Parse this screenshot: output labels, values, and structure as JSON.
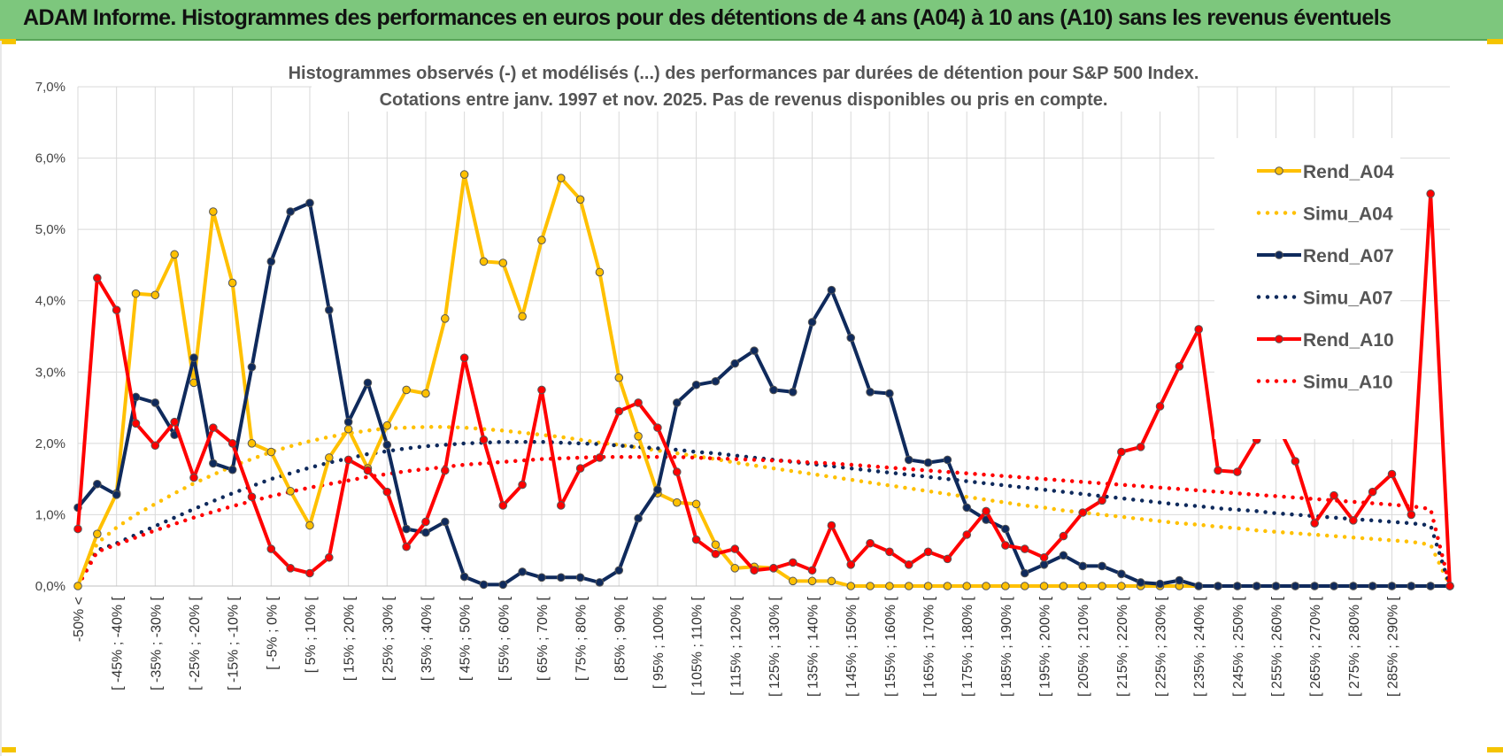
{
  "banner": {
    "title": "ADAM Informe. Histogrammes des performances en euros pour des détentions de 4 ans (A04) à 10 ans (A10) sans les revenus éventuels",
    "background": "#7dc77d",
    "accent": "#f5c400"
  },
  "chart_data": {
    "type": "line",
    "title": "Histogrammes observés (-) et modélisés (...) des performances par durées de détention pour S&P 500 Index.",
    "subtitle": "Cotations entre janv. 1997 et nov. 2025. Pas de revenus disponibles ou pris en compte.",
    "ylim": [
      0,
      7
    ],
    "yticks": [
      "0,0%",
      "1,0%",
      "2,0%",
      "3,0%",
      "4,0%",
      "5,0%",
      "6,0%",
      "7,0%"
    ],
    "grid": true,
    "legend_position": "right",
    "category_labels": [
      "-50% <",
      "[ -45% ; -40% [",
      "[ -35% ; -30% [",
      "[ -25% ; -20% [",
      "[ -15% ; -10% [",
      "[ -5% ; 0% [",
      "[ 5% ; 10% [",
      "[ 15% ; 20% [",
      "[ 25% ; 30% [",
      "[ 35% ; 40% [",
      "[ 45% ; 50% [",
      "[ 55% ; 60% [",
      "[ 65% ; 70% [",
      "[ 75% ; 80% [",
      "[ 85% ; 90% [",
      "[ 95% ; 100% [",
      "[ 105% ; 110% [",
      "[ 115% ; 120% [",
      "[ 125% ; 130% [",
      "[ 135% ; 140% [",
      "[ 145% ; 150% [",
      "[ 155% ; 160% [",
      "[ 165% ; 170% [",
      "[ 175% ; 180% [",
      "[ 185% ; 190% [",
      "[ 195% ; 200% [",
      "[ 205% ; 210% [",
      "[ 215% ; 220% [",
      "[ 225% ; 230% [",
      "[ 235% ; 240% [",
      "[ 245% ; 250% [",
      "[ 255% ; 260% [",
      "[ 265% ; 270% [",
      "[ 275% ; 280% [",
      "[ 285% ; 290% ["
    ],
    "series": [
      {
        "name": "Rend_A04",
        "style": "solid",
        "color": "#ffc000",
        "values": [
          0,
          0.73,
          1.3,
          4.1,
          4.08,
          4.65,
          2.85,
          5.25,
          4.25,
          2.0,
          1.88,
          1.33,
          0.85,
          1.8,
          2.2,
          1.65,
          2.25,
          2.75,
          2.7,
          3.75,
          5.77,
          4.55,
          4.53,
          3.78,
          4.85,
          5.72,
          5.42,
          4.4,
          2.92,
          2.1,
          1.3,
          1.17,
          1.15,
          0.58,
          0.25,
          0.27,
          0.25,
          0.07,
          0.07,
          0.07,
          0,
          0,
          0,
          0,
          0,
          0,
          0,
          0,
          0,
          0,
          0,
          0,
          0,
          0,
          0,
          0,
          0,
          0,
          0,
          0,
          0,
          0,
          0,
          0,
          0,
          0,
          0,
          0,
          0,
          0,
          0,
          0
        ]
      },
      {
        "name": "Simu_A04",
        "style": "dotted",
        "color": "#ffc000",
        "values": [
          0,
          0.6,
          0.82,
          1.0,
          1.15,
          1.3,
          1.44,
          1.56,
          1.68,
          1.78,
          1.88,
          1.96,
          2.03,
          2.09,
          2.14,
          2.18,
          2.21,
          2.22,
          2.23,
          2.23,
          2.22,
          2.2,
          2.18,
          2.15,
          2.12,
          2.09,
          2.05,
          2.01,
          1.98,
          1.94,
          1.9,
          1.86,
          1.82,
          1.78,
          1.73,
          1.69,
          1.65,
          1.61,
          1.57,
          1.53,
          1.49,
          1.45,
          1.41,
          1.37,
          1.33,
          1.29,
          1.25,
          1.21,
          1.17,
          1.13,
          1.1,
          1.06,
          1.03,
          1.0,
          0.97,
          0.94,
          0.91,
          0.88,
          0.86,
          0.83,
          0.81,
          0.78,
          0.76,
          0.74,
          0.72,
          0.7,
          0.68,
          0.66,
          0.64,
          0.62,
          0.58,
          0
        ]
      },
      {
        "name": "Rend_A07",
        "style": "solid",
        "color": "#0f2a5c",
        "values": [
          1.1,
          1.43,
          1.28,
          2.65,
          2.57,
          2.12,
          3.2,
          1.72,
          1.63,
          3.07,
          4.55,
          5.25,
          5.37,
          3.87,
          2.3,
          2.85,
          1.98,
          0.8,
          0.75,
          0.9,
          0.13,
          0.02,
          0.02,
          0.2,
          0.12,
          0.12,
          0.12,
          0.05,
          0.22,
          0.95,
          1.35,
          2.57,
          2.82,
          2.87,
          3.12,
          3.3,
          2.75,
          2.72,
          3.7,
          4.15,
          3.48,
          2.72,
          2.7,
          1.77,
          1.73,
          1.77,
          1.1,
          0.93,
          0.8,
          0.18,
          0.3,
          0.43,
          0.28,
          0.28,
          0.17,
          0.05,
          0.03,
          0.08,
          0,
          0,
          0,
          0,
          0,
          0,
          0,
          0,
          0,
          0,
          0,
          0,
          0,
          0
        ]
      },
      {
        "name": "Simu_A07",
        "style": "dotted",
        "color": "#0f2a5c",
        "values": [
          0,
          0.5,
          0.6,
          0.72,
          0.84,
          0.96,
          1.08,
          1.19,
          1.3,
          1.4,
          1.5,
          1.58,
          1.66,
          1.73,
          1.79,
          1.85,
          1.89,
          1.93,
          1.96,
          1.98,
          2.0,
          2.01,
          2.02,
          2.02,
          2.02,
          2.01,
          2.0,
          1.99,
          1.97,
          1.95,
          1.93,
          1.91,
          1.88,
          1.86,
          1.83,
          1.8,
          1.77,
          1.74,
          1.71,
          1.68,
          1.65,
          1.62,
          1.59,
          1.56,
          1.53,
          1.5,
          1.47,
          1.44,
          1.41,
          1.38,
          1.35,
          1.32,
          1.29,
          1.26,
          1.23,
          1.2,
          1.17,
          1.14,
          1.12,
          1.09,
          1.07,
          1.05,
          1.02,
          1.0,
          0.98,
          0.96,
          0.94,
          0.92,
          0.9,
          0.88,
          0.85,
          0
        ]
      },
      {
        "name": "Rend_A10",
        "style": "solid",
        "color": "#ff0000",
        "values": [
          0.8,
          4.32,
          3.87,
          2.28,
          1.97,
          2.3,
          1.52,
          2.22,
          2.0,
          1.25,
          0.52,
          0.25,
          0.18,
          0.4,
          1.77,
          1.62,
          1.32,
          0.55,
          0.9,
          1.62,
          3.2,
          2.05,
          1.13,
          1.42,
          2.75,
          1.13,
          1.65,
          1.8,
          2.45,
          2.57,
          2.22,
          1.6,
          0.65,
          0.45,
          0.52,
          0.22,
          0.25,
          0.33,
          0.22,
          0.85,
          0.3,
          0.6,
          0.48,
          0.3,
          0.48,
          0.38,
          0.72,
          1.05,
          0.57,
          0.52,
          0.4,
          0.7,
          1.03,
          1.2,
          1.88,
          1.95,
          2.52,
          3.08,
          3.6,
          1.62,
          1.6,
          2.05,
          2.3,
          1.75,
          0.88,
          1.27,
          0.92,
          1.32,
          1.57,
          1.0,
          5.5,
          0
        ]
      },
      {
        "name": "Simu_A10",
        "style": "dotted",
        "color": "#ff0000",
        "values": [
          0,
          0.48,
          0.58,
          0.68,
          0.78,
          0.87,
          0.96,
          1.04,
          1.12,
          1.19,
          1.26,
          1.32,
          1.38,
          1.43,
          1.48,
          1.53,
          1.57,
          1.61,
          1.64,
          1.67,
          1.7,
          1.72,
          1.74,
          1.76,
          1.78,
          1.79,
          1.8,
          1.81,
          1.81,
          1.81,
          1.81,
          1.81,
          1.8,
          1.79,
          1.78,
          1.77,
          1.76,
          1.75,
          1.73,
          1.72,
          1.7,
          1.68,
          1.66,
          1.64,
          1.62,
          1.6,
          1.58,
          1.56,
          1.54,
          1.52,
          1.5,
          1.48,
          1.46,
          1.44,
          1.42,
          1.4,
          1.38,
          1.36,
          1.34,
          1.32,
          1.3,
          1.28,
          1.26,
          1.24,
          1.22,
          1.2,
          1.18,
          1.16,
          1.14,
          1.12,
          1.08,
          0
        ]
      }
    ]
  }
}
